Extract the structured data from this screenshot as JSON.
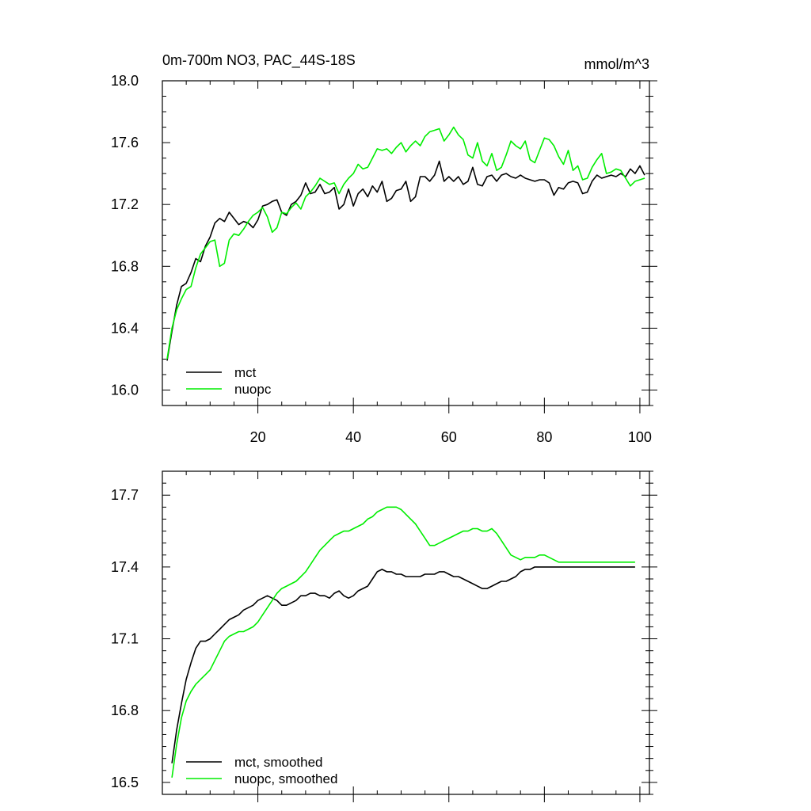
{
  "colors": {
    "series_1": "#000000",
    "series_2": "#00ee00",
    "axis": "#000000",
    "background": "#ffffff"
  },
  "chart_data": [
    {
      "type": "line",
      "title": "0m-700m NO3, PAC_44S-18S",
      "units_label": "mmol/m^3",
      "xlabel": "",
      "ylabel": "",
      "xlim": [
        0,
        102
      ],
      "ylim": [
        15.9,
        18.0
      ],
      "xticks": [
        20,
        40,
        60,
        80,
        100
      ],
      "xtick_labels": [
        "20",
        "40",
        "60",
        "80",
        "100"
      ],
      "yticks": [
        16.0,
        16.4,
        16.8,
        17.2,
        17.6,
        18.0
      ],
      "ytick_labels": [
        "16.0",
        "16.4",
        "16.8",
        "17.2",
        "17.6",
        "18.0"
      ],
      "legend_position": "bottom-left",
      "grid": false,
      "series": [
        {
          "name": "mct",
          "color": "#000000",
          "x": [
            1,
            2,
            3,
            4,
            5,
            6,
            7,
            8,
            9,
            10,
            11,
            12,
            13,
            14,
            15,
            16,
            17,
            18,
            19,
            20,
            21,
            22,
            23,
            24,
            25,
            26,
            27,
            28,
            29,
            30,
            31,
            32,
            33,
            34,
            35,
            36,
            37,
            38,
            39,
            40,
            41,
            42,
            43,
            44,
            45,
            46,
            47,
            48,
            49,
            50,
            51,
            52,
            53,
            54,
            55,
            56,
            57,
            58,
            59,
            60,
            61,
            62,
            63,
            64,
            65,
            66,
            67,
            68,
            69,
            70,
            71,
            72,
            73,
            74,
            75,
            76,
            77,
            78,
            79,
            80,
            81,
            82,
            83,
            84,
            85,
            86,
            87,
            88,
            89,
            90,
            91,
            92,
            93,
            94,
            95,
            96,
            97,
            98,
            99,
            100,
            101
          ],
          "y": [
            16.19,
            16.38,
            16.55,
            16.67,
            16.69,
            16.76,
            16.85,
            16.83,
            16.93,
            16.99,
            17.08,
            17.11,
            17.09,
            17.15,
            17.11,
            17.07,
            17.09,
            17.08,
            17.05,
            17.1,
            17.19,
            17.2,
            17.22,
            17.23,
            17.15,
            17.13,
            17.2,
            17.22,
            17.26,
            17.34,
            17.27,
            17.28,
            17.33,
            17.27,
            17.28,
            17.31,
            17.17,
            17.2,
            17.3,
            17.19,
            17.27,
            17.3,
            17.25,
            17.32,
            17.28,
            17.35,
            17.22,
            17.24,
            17.29,
            17.3,
            17.35,
            17.22,
            17.25,
            17.38,
            17.38,
            17.35,
            17.39,
            17.48,
            17.35,
            17.38,
            17.35,
            17.38,
            17.33,
            17.35,
            17.44,
            17.33,
            17.32,
            17.38,
            17.39,
            17.35,
            17.39,
            17.4,
            17.38,
            17.37,
            17.39,
            17.37,
            17.36,
            17.35,
            17.36,
            17.36,
            17.34,
            17.26,
            17.31,
            17.3,
            17.34,
            17.35,
            17.34,
            17.27,
            17.28,
            17.35,
            17.39,
            17.37,
            17.38,
            17.39,
            17.38,
            17.4,
            17.38,
            17.43,
            17.4,
            17.45,
            17.39
          ]
        },
        {
          "name": "nuopc",
          "color": "#00ee00",
          "x": [
            1,
            2,
            3,
            4,
            5,
            6,
            7,
            8,
            9,
            10,
            11,
            12,
            13,
            14,
            15,
            16,
            17,
            18,
            19,
            20,
            21,
            22,
            23,
            24,
            25,
            26,
            27,
            28,
            29,
            30,
            31,
            32,
            33,
            34,
            35,
            36,
            37,
            38,
            39,
            40,
            41,
            42,
            43,
            44,
            45,
            46,
            47,
            48,
            49,
            50,
            51,
            52,
            53,
            54,
            55,
            56,
            57,
            58,
            59,
            60,
            61,
            62,
            63,
            64,
            65,
            66,
            67,
            68,
            69,
            70,
            71,
            72,
            73,
            74,
            75,
            76,
            77,
            78,
            79,
            80,
            81,
            82,
            83,
            84,
            85,
            86,
            87,
            88,
            89,
            90,
            91,
            92,
            93,
            94,
            95,
            96,
            97,
            98,
            99,
            100,
            101
          ],
          "y": [
            16.2,
            16.4,
            16.52,
            16.59,
            16.65,
            16.67,
            16.79,
            16.88,
            16.92,
            16.96,
            16.97,
            16.8,
            16.82,
            16.97,
            17.01,
            17.0,
            17.04,
            17.09,
            17.13,
            17.15,
            17.18,
            17.12,
            17.02,
            17.05,
            17.15,
            17.14,
            17.18,
            17.21,
            17.17,
            17.25,
            17.28,
            17.32,
            17.37,
            17.35,
            17.33,
            17.34,
            17.27,
            17.33,
            17.37,
            17.4,
            17.46,
            17.43,
            17.44,
            17.5,
            17.56,
            17.55,
            17.56,
            17.53,
            17.57,
            17.6,
            17.54,
            17.58,
            17.61,
            17.58,
            17.64,
            17.67,
            17.68,
            17.69,
            17.61,
            17.65,
            17.7,
            17.65,
            17.62,
            17.52,
            17.5,
            17.6,
            17.48,
            17.45,
            17.53,
            17.42,
            17.44,
            17.52,
            17.61,
            17.58,
            17.56,
            17.61,
            17.49,
            17.47,
            17.55,
            17.63,
            17.62,
            17.58,
            17.51,
            17.46,
            17.55,
            17.42,
            17.45,
            17.36,
            17.37,
            17.44,
            17.49,
            17.53,
            17.4,
            17.41,
            17.43,
            17.42,
            17.37,
            17.32,
            17.35,
            17.36,
            17.37
          ]
        }
      ]
    },
    {
      "type": "line",
      "title": "",
      "xlabel": "",
      "ylabel": "",
      "xlim": [
        0,
        102
      ],
      "ylim": [
        16.45,
        17.8
      ],
      "xticks": [
        20,
        40,
        60,
        80,
        100
      ],
      "yticks": [
        16.5,
        16.8,
        17.1,
        17.4,
        17.7
      ],
      "ytick_labels": [
        "16.5",
        "16.8",
        "17.1",
        "17.4",
        "17.7"
      ],
      "legend_position": "bottom-left",
      "grid": false,
      "series": [
        {
          "name": "mct, smoothed",
          "color": "#000000",
          "x": [
            2,
            3,
            4,
            5,
            6,
            7,
            8,
            9,
            10,
            11,
            12,
            13,
            14,
            15,
            16,
            17,
            18,
            19,
            20,
            21,
            22,
            23,
            24,
            25,
            26,
            27,
            28,
            29,
            30,
            31,
            32,
            33,
            34,
            35,
            36,
            37,
            38,
            39,
            40,
            41,
            42,
            43,
            44,
            45,
            46,
            47,
            48,
            49,
            50,
            51,
            52,
            53,
            54,
            55,
            56,
            57,
            58,
            59,
            60,
            61,
            62,
            63,
            64,
            65,
            66,
            67,
            68,
            69,
            70,
            71,
            72,
            73,
            74,
            75,
            76,
            77,
            78,
            79,
            80,
            81,
            82,
            83,
            84,
            85,
            86,
            87,
            88,
            89,
            90,
            91,
            92,
            93,
            94,
            95,
            96,
            97,
            98,
            99
          ],
          "y": [
            16.58,
            16.72,
            16.83,
            16.93,
            17.0,
            17.06,
            17.09,
            17.09,
            17.1,
            17.12,
            17.14,
            17.16,
            17.18,
            17.19,
            17.2,
            17.22,
            17.23,
            17.24,
            17.26,
            17.27,
            17.28,
            17.27,
            17.26,
            17.24,
            17.24,
            17.25,
            17.26,
            17.28,
            17.28,
            17.29,
            17.29,
            17.28,
            17.28,
            17.27,
            17.29,
            17.3,
            17.28,
            17.27,
            17.28,
            17.3,
            17.31,
            17.32,
            17.35,
            17.38,
            17.39,
            17.38,
            17.38,
            17.37,
            17.37,
            17.36,
            17.36,
            17.36,
            17.36,
            17.37,
            17.37,
            17.37,
            17.38,
            17.38,
            17.37,
            17.36,
            17.36,
            17.35,
            17.34,
            17.33,
            17.32,
            17.31,
            17.31,
            17.32,
            17.33,
            17.34,
            17.34,
            17.35,
            17.36,
            17.38,
            17.39,
            17.39,
            17.4,
            17.4,
            17.4,
            17.4,
            17.4,
            17.4,
            17.4,
            17.4,
            17.4,
            17.4,
            17.4,
            17.4,
            17.4,
            17.4,
            17.4,
            17.4,
            17.4,
            17.4,
            17.4,
            17.4,
            17.4,
            17.4
          ]
        },
        {
          "name": "nuopc, smoothed",
          "color": "#00ee00",
          "x": [
            2,
            3,
            4,
            5,
            6,
            7,
            8,
            9,
            10,
            11,
            12,
            13,
            14,
            15,
            16,
            17,
            18,
            19,
            20,
            21,
            22,
            23,
            24,
            25,
            26,
            27,
            28,
            29,
            30,
            31,
            32,
            33,
            34,
            35,
            36,
            37,
            38,
            39,
            40,
            41,
            42,
            43,
            44,
            45,
            46,
            47,
            48,
            49,
            50,
            51,
            52,
            53,
            54,
            55,
            56,
            57,
            58,
            59,
            60,
            61,
            62,
            63,
            64,
            65,
            66,
            67,
            68,
            69,
            70,
            71,
            72,
            73,
            74,
            75,
            76,
            77,
            78,
            79,
            80,
            81,
            82,
            83,
            84,
            85,
            86,
            87,
            88,
            89,
            90,
            91,
            92,
            93,
            94,
            95,
            96,
            97,
            98,
            99
          ],
          "y": [
            16.52,
            16.66,
            16.77,
            16.84,
            16.88,
            16.91,
            16.93,
            16.95,
            16.97,
            17.01,
            17.05,
            17.09,
            17.11,
            17.12,
            17.13,
            17.13,
            17.14,
            17.15,
            17.17,
            17.2,
            17.23,
            17.26,
            17.29,
            17.31,
            17.32,
            17.33,
            17.34,
            17.36,
            17.38,
            17.41,
            17.44,
            17.47,
            17.49,
            17.51,
            17.53,
            17.54,
            17.55,
            17.55,
            17.56,
            17.57,
            17.58,
            17.6,
            17.61,
            17.63,
            17.64,
            17.65,
            17.65,
            17.65,
            17.64,
            17.62,
            17.6,
            17.58,
            17.55,
            17.52,
            17.49,
            17.49,
            17.5,
            17.51,
            17.52,
            17.53,
            17.54,
            17.55,
            17.55,
            17.56,
            17.56,
            17.55,
            17.55,
            17.56,
            17.54,
            17.51,
            17.48,
            17.45,
            17.44,
            17.43,
            17.44,
            17.44,
            17.44,
            17.45,
            17.45,
            17.44,
            17.43,
            17.42,
            17.42,
            17.42,
            17.42,
            17.42,
            17.42,
            17.42,
            17.42,
            17.42,
            17.42,
            17.42,
            17.42,
            17.42,
            17.42,
            17.42,
            17.42,
            17.42
          ]
        }
      ]
    }
  ]
}
